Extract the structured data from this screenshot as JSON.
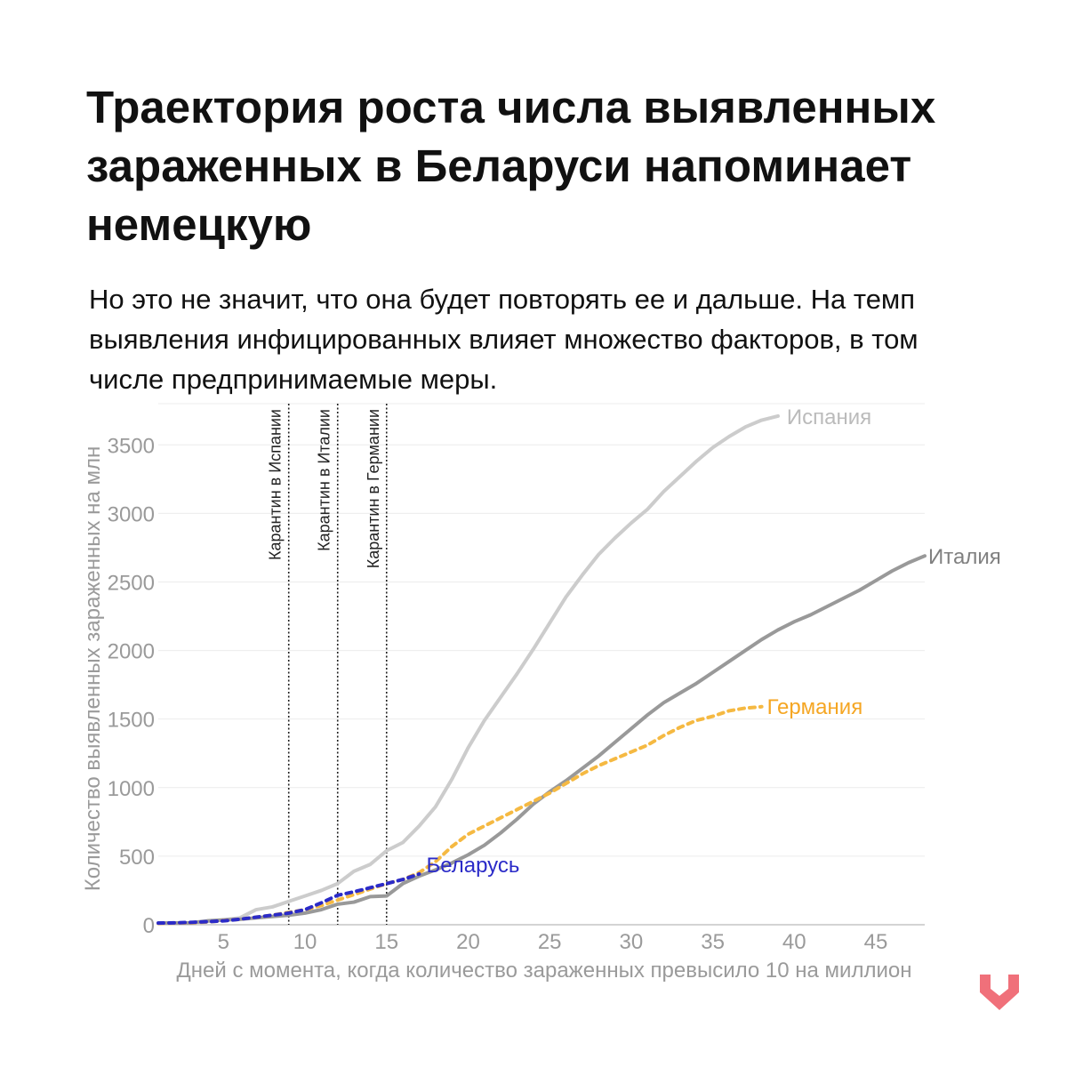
{
  "header": {
    "title": "Траектория роста числа выявленных зараженных в Беларуси напоминает немецкую",
    "subtitle": "Но это не значит, что она будет повторять ее и дальше. На темп выявления инфицированных влияет множество факторов, в том числе предпринимаемые меры."
  },
  "logo": {
    "icon": "down-arrow-logo-icon",
    "color": "#f0707a"
  },
  "chart_data": {
    "type": "line",
    "title": "",
    "xlabel": "Дней с момента, когда количество зараженных превысило 10 на миллион",
    "ylabel": "Количество выявленных зараженных на млн",
    "xlim": [
      1,
      48
    ],
    "ylim": [
      0,
      3800
    ],
    "xticks": [
      5,
      10,
      15,
      20,
      25,
      30,
      35,
      40,
      45
    ],
    "yticks": [
      0,
      500,
      1000,
      1500,
      2000,
      2500,
      3000,
      3500
    ],
    "grid": true,
    "annotations": [
      {
        "x": 9,
        "label": "Карантин в Испании"
      },
      {
        "x": 12,
        "label": "Карантин в Италии"
      },
      {
        "x": 15,
        "label": "Карантин в Германии"
      }
    ],
    "series": [
      {
        "name": "Испания",
        "color": "#cccccc",
        "dash": false,
        "x": [
          1,
          2,
          3,
          4,
          5,
          6,
          7,
          8,
          9,
          10,
          11,
          12,
          13,
          14,
          15,
          16,
          17,
          18,
          19,
          20,
          21,
          22,
          23,
          24,
          25,
          26,
          27,
          28,
          29,
          30,
          31,
          32,
          33,
          34,
          35,
          36,
          37,
          38,
          39
        ],
        "y": [
          10,
          12,
          15,
          25,
          35,
          50,
          110,
          130,
          170,
          210,
          250,
          300,
          390,
          440,
          540,
          600,
          720,
          860,
          1060,
          1290,
          1490,
          1660,
          1830,
          2010,
          2200,
          2390,
          2550,
          2700,
          2820,
          2930,
          3030,
          3160,
          3270,
          3380,
          3480,
          3560,
          3630,
          3680,
          3710
        ]
      },
      {
        "name": "Италия",
        "color": "#999999",
        "dash": false,
        "x": [
          1,
          2,
          3,
          4,
          5,
          6,
          7,
          8,
          9,
          10,
          11,
          12,
          13,
          14,
          15,
          16,
          17,
          18,
          19,
          20,
          21,
          22,
          23,
          24,
          25,
          26,
          27,
          28,
          29,
          30,
          31,
          32,
          33,
          34,
          35,
          36,
          37,
          38,
          39,
          40,
          41,
          42,
          43,
          44,
          45,
          46,
          47,
          48
        ],
        "y": [
          12,
          13,
          14,
          28,
          35,
          40,
          50,
          60,
          70,
          85,
          110,
          150,
          165,
          205,
          210,
          300,
          355,
          400,
          450,
          510,
          580,
          670,
          770,
          880,
          970,
          1050,
          1140,
          1230,
          1330,
          1430,
          1530,
          1620,
          1690,
          1760,
          1840,
          1920,
          2000,
          2080,
          2150,
          2210,
          2260,
          2320,
          2380,
          2440,
          2510,
          2580,
          2640,
          2690
        ]
      },
      {
        "name": "Германия",
        "color": "#f5b942",
        "dash": true,
        "x": [
          1,
          2,
          3,
          4,
          5,
          6,
          7,
          8,
          9,
          10,
          11,
          12,
          13,
          14,
          15,
          16,
          17,
          18,
          19,
          20,
          21,
          22,
          23,
          24,
          25,
          26,
          27,
          28,
          29,
          30,
          31,
          32,
          33,
          34,
          35,
          36,
          37,
          38
        ],
        "y": [
          10,
          12,
          14,
          20,
          30,
          40,
          55,
          70,
          90,
          110,
          140,
          180,
          220,
          260,
          300,
          330,
          380,
          460,
          570,
          660,
          720,
          780,
          840,
          900,
          960,
          1030,
          1100,
          1160,
          1210,
          1260,
          1310,
          1380,
          1440,
          1490,
          1520,
          1560,
          1580,
          1590
        ]
      },
      {
        "name": "Беларусь",
        "color": "#2b2bc8",
        "dash": true,
        "x": [
          1,
          2,
          3,
          4,
          5,
          6,
          7,
          8,
          9,
          10,
          11,
          12,
          13,
          14,
          15,
          16,
          17
        ],
        "y": [
          12,
          14,
          17,
          22,
          28,
          40,
          55,
          70,
          85,
          110,
          160,
          215,
          240,
          270,
          300,
          330,
          370
        ]
      }
    ]
  }
}
